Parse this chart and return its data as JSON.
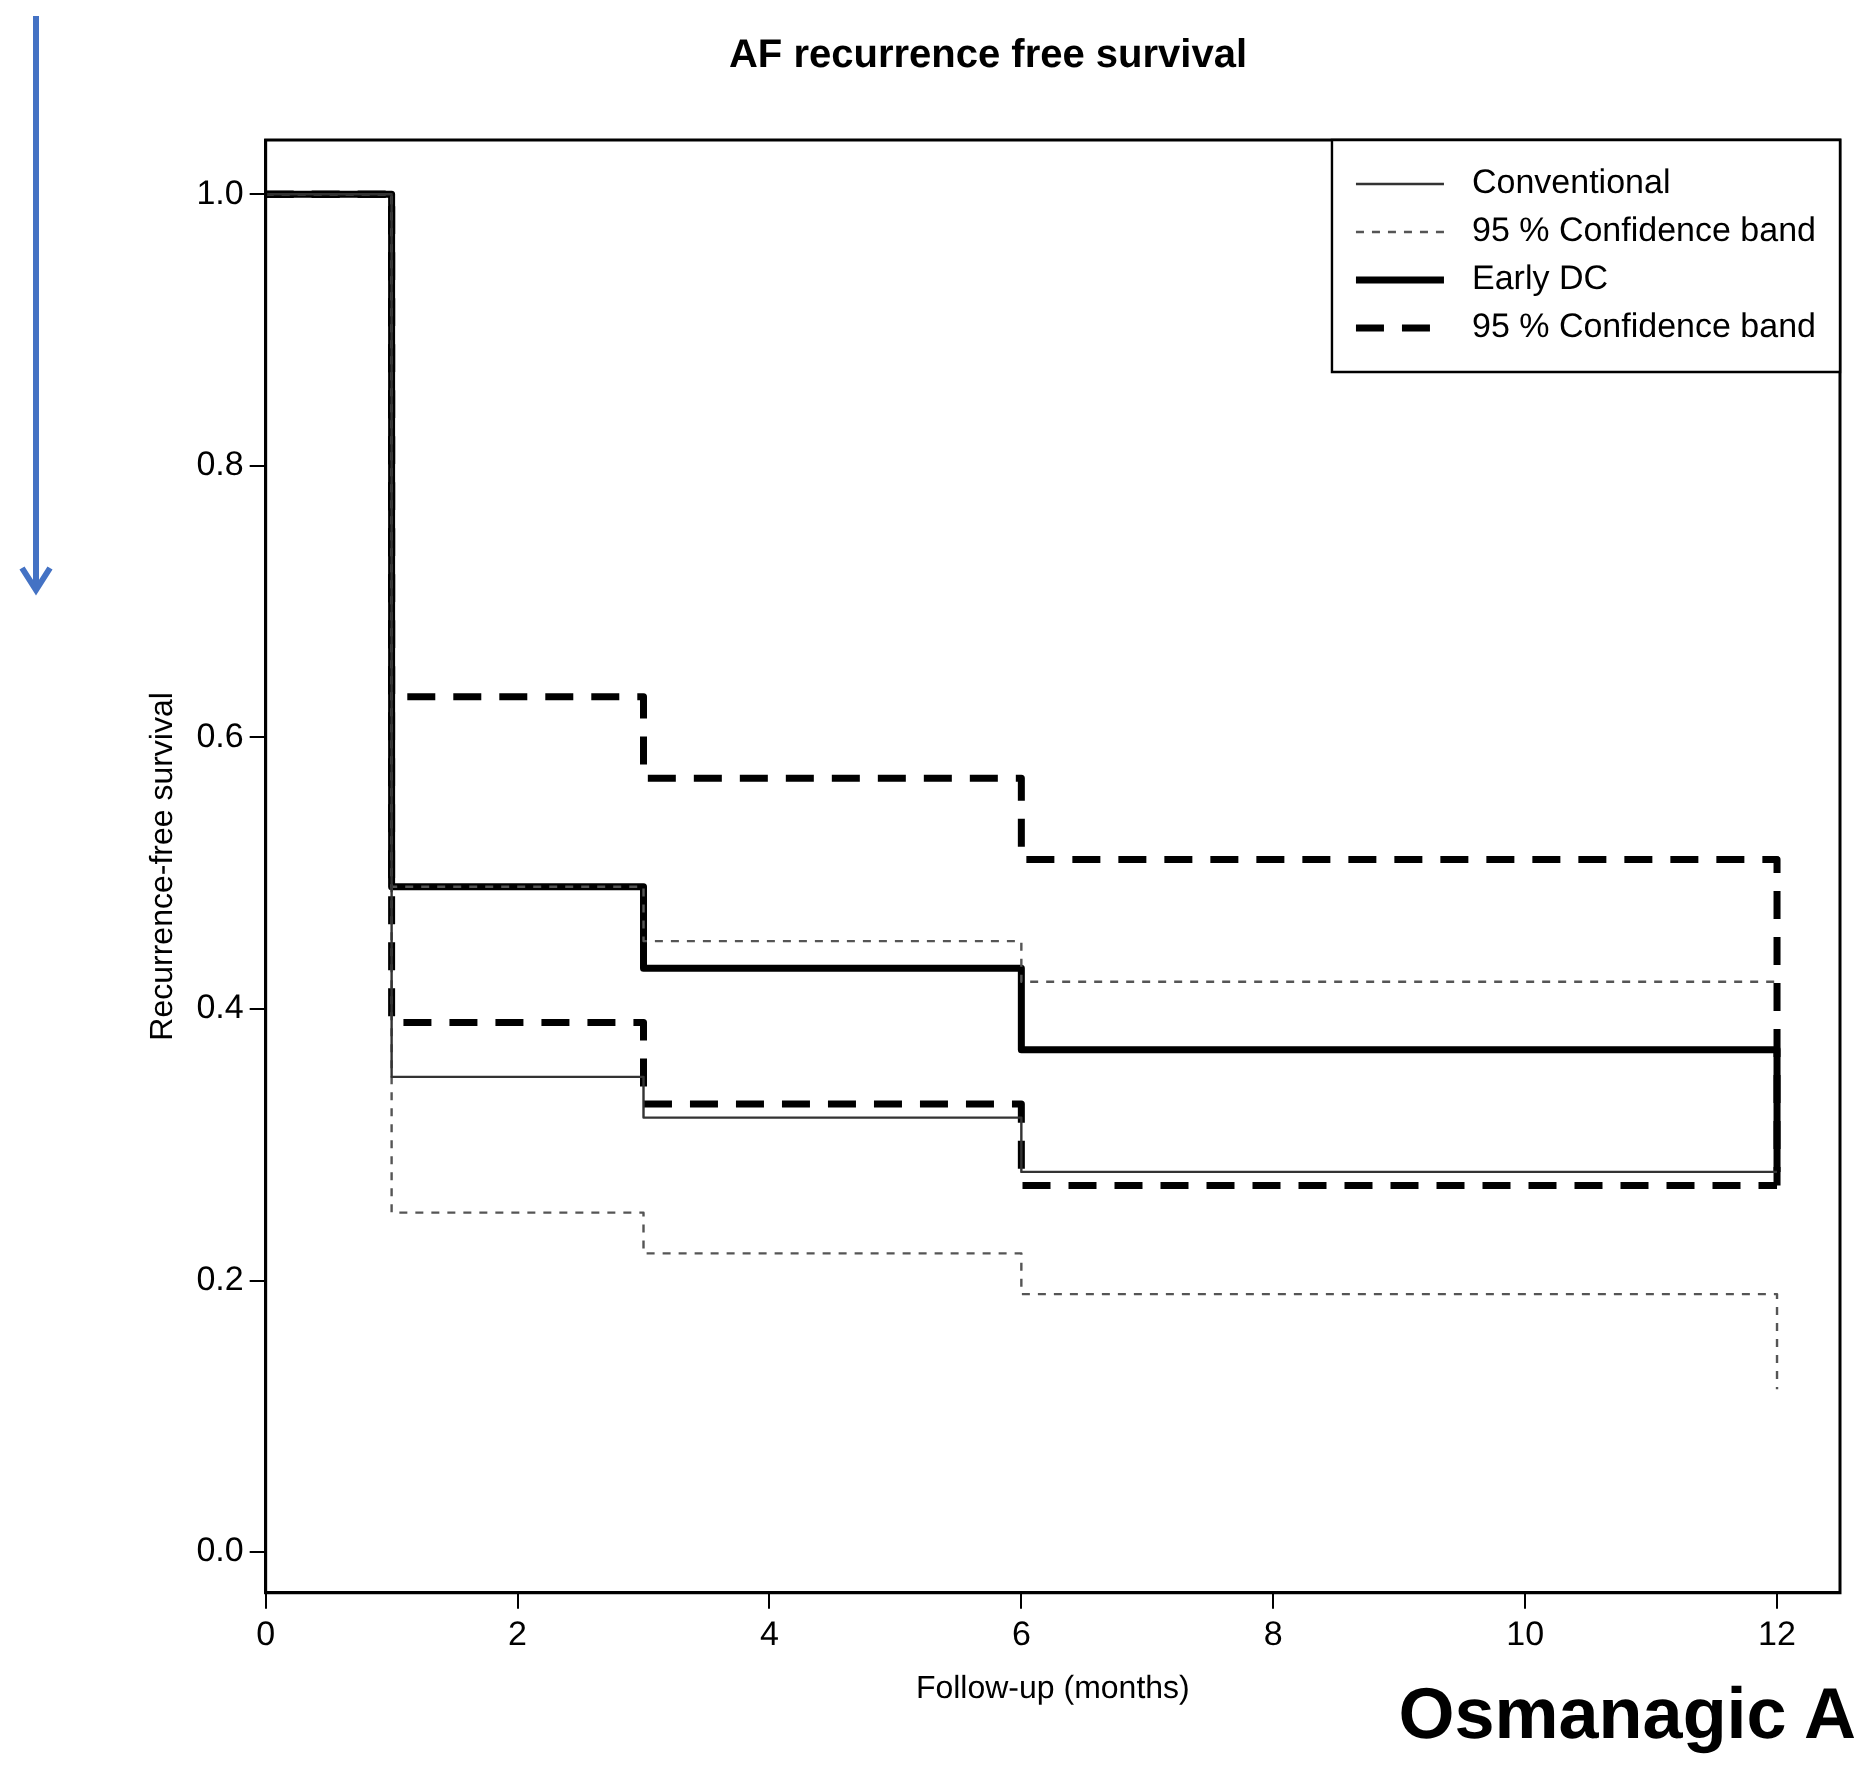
{
  "chart_data": {
    "type": "step",
    "title": "AF recurrence free survival",
    "xlabel": "Follow-up (months)",
    "ylabel": "Recurrence-free survival",
    "x": [
      0,
      1,
      3,
      6,
      12
    ],
    "series": [
      {
        "name": "Conventional",
        "color": "#333333",
        "line_style": "solid",
        "values": [
          1.0,
          0.35,
          0.32,
          0.28,
          0.28
        ]
      },
      {
        "name": "95 % Confidence band",
        "color": "#555555",
        "line_style": "dotted",
        "values": [
          1.0,
          0.49,
          0.45,
          0.42,
          0.42
        ]
      },
      {
        "color": "#555555",
        "line_style": "dotted",
        "values": [
          1.0,
          0.25,
          0.22,
          0.19,
          0.12
        ]
      },
      {
        "name": "Early DC",
        "color": "#000000",
        "line_style": "solid",
        "values": [
          1.0,
          0.49,
          0.43,
          0.37,
          0.28
        ]
      },
      {
        "name": "95 % Confidence band",
        "color": "#000000",
        "line_style": "dashed",
        "values": [
          1.0,
          0.63,
          0.57,
          0.51,
          0.27
        ]
      },
      {
        "color": "#000000",
        "line_style": "dashed",
        "values": [
          1.0,
          0.39,
          0.33,
          0.27,
          0.27
        ]
      }
    ],
    "xlim": [
      0,
      12.5
    ],
    "xticks": [
      0,
      2,
      4,
      6,
      8,
      10,
      12
    ],
    "ylim": [
      -0.03,
      1.04
    ],
    "yticks": [
      {
        "value": 0,
        "label": "0.0"
      },
      {
        "value": 0.2,
        "label": "0.2"
      },
      {
        "value": 0.4,
        "label": "0.4"
      },
      {
        "value": 0.6,
        "label": "0.6"
      },
      {
        "value": 0.8,
        "label": "0.8"
      },
      {
        "value": 1,
        "label": "1.0"
      }
    ],
    "grid": false,
    "legend": "top right",
    "annotations": [
      "Osmanagic A"
    ]
  }
}
